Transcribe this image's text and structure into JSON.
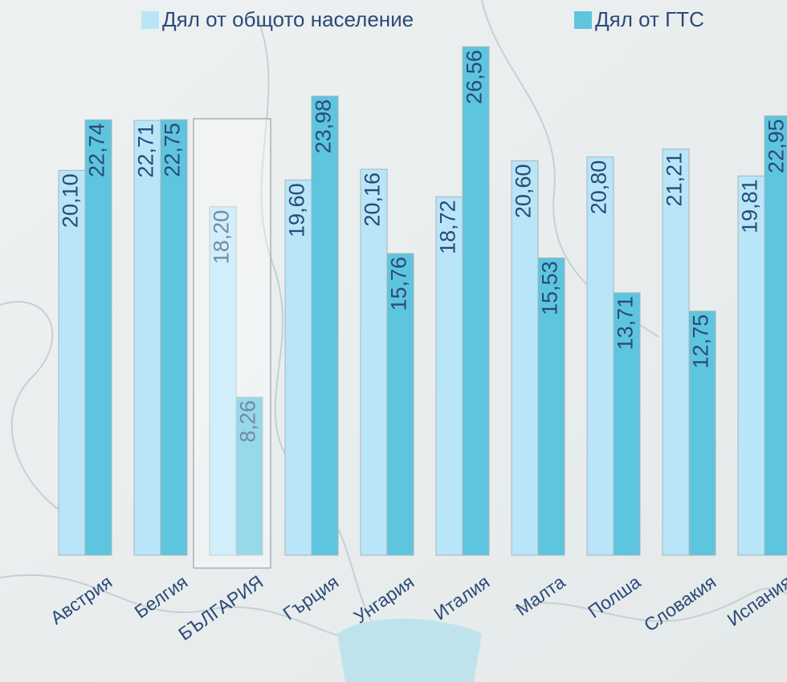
{
  "chart_data": {
    "type": "bar",
    "categories": [
      "Австрия",
      "Белгия",
      "БЪЛГАРИЯ",
      "Гърция",
      "Унгария",
      "Италия",
      "Малта",
      "Полша",
      "Словакия",
      "Испания"
    ],
    "series": [
      {
        "name": "Дял от общото население",
        "color": "#b8e6f8",
        "values": [
          20.1,
          22.71,
          18.2,
          19.6,
          20.16,
          18.72,
          20.6,
          20.8,
          21.21,
          19.81
        ],
        "value_labels": [
          "20,10",
          "22,71",
          "18,20",
          "19,60",
          "20,16",
          "18,72",
          "20,60",
          "20,80",
          "21,21",
          "19,81"
        ]
      },
      {
        "name": "Дял от ГТС",
        "color": "#5ec5de",
        "values": [
          22.74,
          22.75,
          8.26,
          23.98,
          15.76,
          26.56,
          15.53,
          13.71,
          12.75,
          22.95
        ],
        "value_labels": [
          "22,74",
          "22,75",
          "8,26",
          "23,98",
          "15,76",
          "26,56",
          "15,53",
          "13,71",
          "12,75",
          "22,95"
        ]
      }
    ],
    "ylim": [
      0,
      29
    ]
  }
}
